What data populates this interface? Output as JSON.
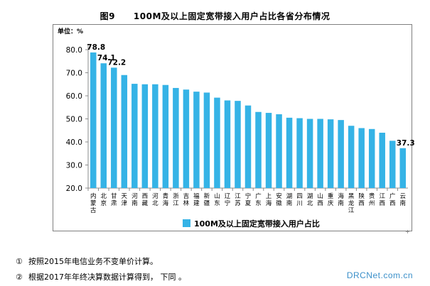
{
  "figure": {
    "number": "图9",
    "title": "100M及以上固定宽带接入用户占比各省分布情况"
  },
  "notes": [
    {
      "mark": "①",
      "text": "按照2015年电信业务不变单价计算。"
    },
    {
      "mark": "②",
      "text": "根据2017年年终决算数据计算得到，  下同 。"
    }
  ],
  "watermark": "DRCNet.com.cn",
  "colors": {
    "bar": "#35b3e6",
    "axis": "#8c8c8c"
  },
  "chart_data": {
    "type": "bar",
    "title": "",
    "unit_label": "单位：%",
    "xlabel": "",
    "ylabel": "",
    "ylim": [
      20,
      80
    ],
    "yticks": [
      "20.0",
      "30.0",
      "40.0",
      "50.0",
      "60.0",
      "70.0",
      "80.0"
    ],
    "legend": "100M及以上固定宽带接入用户占比",
    "legend_position": "bottom",
    "grid": false,
    "categories": [
      "内蒙古",
      "北京",
      "甘肃",
      "天津",
      "河南",
      "西藏",
      "河北",
      "青海",
      "浙江",
      "吉林",
      "福建",
      "新疆",
      "山东",
      "辽宁",
      "江苏",
      "宁夏",
      "广东",
      "上海",
      "安徽",
      "湖南",
      "四川",
      "湖北",
      "山西",
      "重庆",
      "海南",
      "黑龙江",
      "陕西",
      "贵州",
      "江西",
      "广西",
      "云南"
    ],
    "values": [
      78.8,
      74.1,
      72.2,
      69.0,
      65.2,
      65.0,
      65.0,
      64.7,
      63.4,
      62.7,
      61.8,
      61.4,
      59.2,
      58.0,
      57.8,
      55.8,
      53.0,
      52.6,
      52.0,
      50.5,
      50.3,
      50.0,
      50.0,
      49.8,
      49.5,
      47.0,
      46.0,
      45.6,
      44.0,
      40.5,
      37.3
    ],
    "data_labels": [
      {
        "index": 0,
        "text": "78.8"
      },
      {
        "index": 1,
        "text": "74.1"
      },
      {
        "index": 2,
        "text": "72.2"
      },
      {
        "index": 30,
        "text": "37.3"
      }
    ]
  }
}
